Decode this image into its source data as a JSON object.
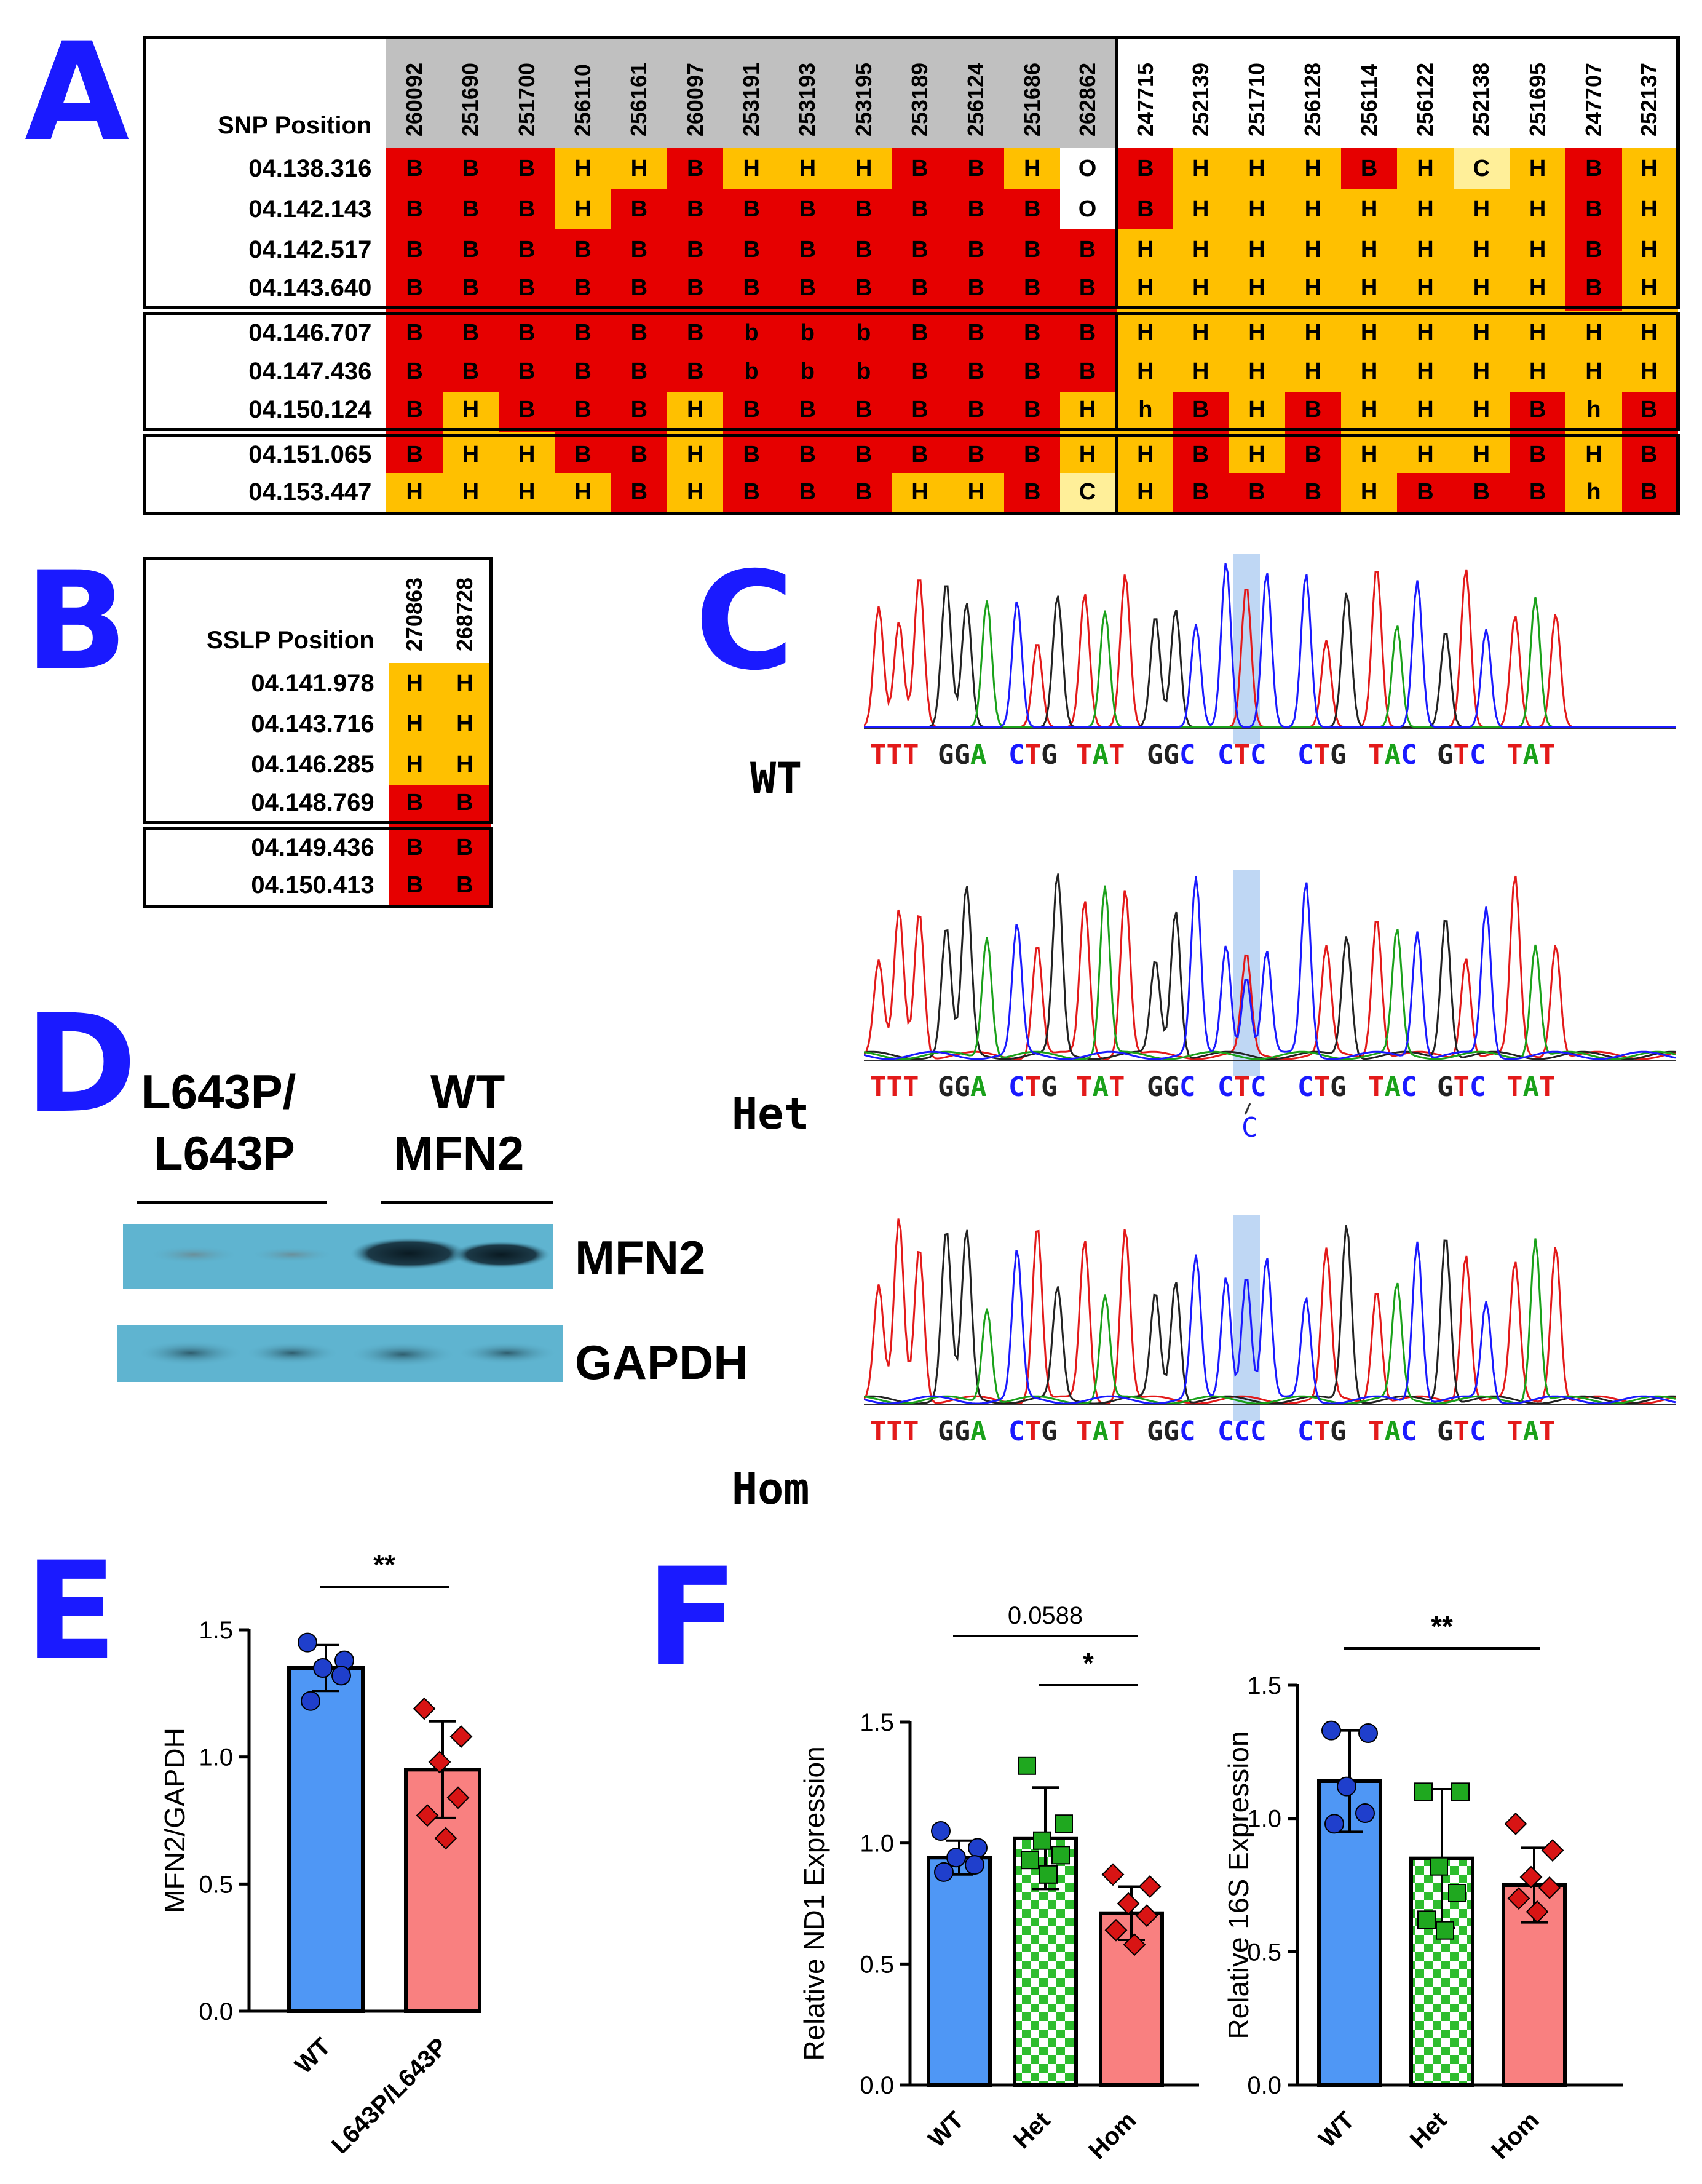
{
  "panels": {
    "A": "A",
    "B": "B",
    "C": "C",
    "D": "D",
    "E": "E",
    "F": "F"
  },
  "snp_table": {
    "corner_label": "SNP Position",
    "grey_columns": [
      "260092",
      "251690",
      "251700",
      "256110",
      "256161",
      "260097",
      "253191",
      "253193",
      "253195",
      "253189",
      "256124",
      "251686",
      "262862"
    ],
    "white_columns": [
      "247715",
      "252139",
      "251710",
      "256128",
      "256114",
      "256122",
      "252138",
      "251695",
      "247707",
      "252137"
    ],
    "rows": [
      {
        "pos": "04.138.316",
        "vals": [
          "B",
          "B",
          "B",
          "H",
          "H",
          "B",
          "H",
          "H",
          "H",
          "B",
          "B",
          "H",
          "O",
          "B",
          "H",
          "H",
          "H",
          "B",
          "H",
          "C",
          "H",
          "B",
          "H"
        ]
      },
      {
        "pos": "04.142.143",
        "vals": [
          "B",
          "B",
          "B",
          "H",
          "B",
          "B",
          "B",
          "B",
          "B",
          "B",
          "B",
          "B",
          "O",
          "B",
          "H",
          "H",
          "H",
          "H",
          "H",
          "H",
          "H",
          "B",
          "H"
        ]
      },
      {
        "pos": "04.142.517",
        "vals": [
          "B",
          "B",
          "B",
          "B",
          "B",
          "B",
          "B",
          "B",
          "B",
          "B",
          "B",
          "B",
          "B",
          "H",
          "H",
          "H",
          "H",
          "H",
          "H",
          "H",
          "H",
          "B",
          "H"
        ]
      },
      {
        "pos": "04.143.640",
        "vals": [
          "B",
          "B",
          "B",
          "B",
          "B",
          "B",
          "B",
          "B",
          "B",
          "B",
          "B",
          "B",
          "B",
          "H",
          "H",
          "H",
          "H",
          "H",
          "H",
          "H",
          "H",
          "B",
          "H"
        ]
      },
      {
        "pos": "04.146.707",
        "sep": true,
        "vals": [
          "B",
          "B",
          "B",
          "B",
          "B",
          "B",
          "b",
          "b",
          "b",
          "B",
          "B",
          "B",
          "B",
          "H",
          "H",
          "H",
          "H",
          "H",
          "H",
          "H",
          "H",
          "H",
          "H"
        ]
      },
      {
        "pos": "04.147.436",
        "vals": [
          "B",
          "B",
          "B",
          "B",
          "B",
          "B",
          "b",
          "b",
          "b",
          "B",
          "B",
          "B",
          "B",
          "H",
          "H",
          "H",
          "H",
          "H",
          "H",
          "H",
          "H",
          "H",
          "H"
        ]
      },
      {
        "pos": "04.150.124",
        "vals": [
          "B",
          "H",
          "B",
          "B",
          "B",
          "H",
          "B",
          "B",
          "B",
          "B",
          "B",
          "B",
          "H",
          "h",
          "B",
          "H",
          "B",
          "H",
          "H",
          "H",
          "B",
          "h",
          "B"
        ]
      },
      {
        "pos": "04.151.065",
        "sep": true,
        "vals": [
          "B",
          "H",
          "H",
          "B",
          "B",
          "H",
          "B",
          "B",
          "B",
          "B",
          "B",
          "B",
          "H",
          "H",
          "B",
          "H",
          "B",
          "H",
          "H",
          "H",
          "B",
          "H",
          "B"
        ]
      },
      {
        "pos": "04.153.447",
        "vals": [
          "H",
          "H",
          "H",
          "H",
          "B",
          "H",
          "B",
          "B",
          "B",
          "H",
          "H",
          "B",
          "C",
          "H",
          "B",
          "B",
          "B",
          "H",
          "B",
          "B",
          "B",
          "h",
          "B"
        ]
      }
    ]
  },
  "sslp_table": {
    "corner_label": "SSLP Position",
    "columns": [
      "270863",
      "268728"
    ],
    "rows": [
      {
        "pos": "04.141.978",
        "vals": [
          "H",
          "H"
        ]
      },
      {
        "pos": "04.143.716",
        "vals": [
          "H",
          "H"
        ]
      },
      {
        "pos": "04.146.285",
        "vals": [
          "H",
          "H"
        ]
      },
      {
        "pos": "04.148.769",
        "vals": [
          "B",
          "B"
        ]
      },
      {
        "pos": "04.149.436",
        "sep": true,
        "vals": [
          "B",
          "B"
        ]
      },
      {
        "pos": "04.150.413",
        "vals": [
          "B",
          "B"
        ]
      }
    ]
  },
  "chromatograms": {
    "labels": [
      "WT",
      "Het",
      "Hom"
    ],
    "codons_wt": [
      "TTT",
      "GGA",
      "CTG",
      "TAT",
      "GGC",
      "CTC",
      "CTG",
      "TAC",
      "GTC",
      "TAT"
    ],
    "codons_het": [
      "TTT",
      "GGA",
      "CTG",
      "TAT",
      "GGC",
      "CTC",
      "CTG",
      "TAC",
      "GTC",
      "TAT"
    ],
    "het_extra": "C",
    "codons_hom": [
      "TTT",
      "GGA",
      "CTG",
      "TAT",
      "GGC",
      "CCC",
      "CTG",
      "TAC",
      "GTC",
      "TAT"
    ],
    "base_colors": {
      "T": "#e31a1a",
      "G": "#222222",
      "A": "#1aa11a",
      "C": "#1a1aff"
    }
  },
  "western": {
    "group1": "L643P/\nL643P",
    "group1_line1": "L643P/",
    "group1_line2": "L643P",
    "group2_line1": "WT",
    "group2_line2": "MFN2",
    "band1": "MFN2",
    "band2": "GAPDH"
  },
  "chart_data": [
    {
      "type": "bar",
      "panel": "E",
      "categories": [
        "WT",
        "L643P/L643P"
      ],
      "values": [
        1.35,
        0.95
      ],
      "errors": [
        0.09,
        0.19
      ],
      "points": [
        [
          1.45,
          1.38,
          1.35,
          1.32,
          1.22
        ],
        [
          1.19,
          1.08,
          0.98,
          0.84,
          0.77,
          0.68
        ]
      ],
      "ylabel": "MFN2/GAPDH",
      "ylim": [
        0,
        1.5
      ],
      "yticks": [
        "0.0",
        "0.5",
        "1.0",
        "1.5"
      ],
      "significance": [
        {
          "from": 0,
          "to": 1,
          "label": "**"
        }
      ],
      "colors": [
        "#4f97f5",
        "#f98080"
      ]
    },
    {
      "type": "bar",
      "panel": "F-left",
      "categories": [
        "WT",
        "Het",
        "Hom"
      ],
      "values": [
        0.94,
        1.02,
        0.71
      ],
      "errors": [
        0.07,
        0.21,
        0.11
      ],
      "points": [
        [
          1.05,
          0.98,
          0.94,
          0.91,
          0.88
        ],
        [
          1.32,
          1.08,
          1.01,
          0.95,
          0.93,
          0.87
        ],
        [
          0.87,
          0.82,
          0.75,
          0.7,
          0.64,
          0.58
        ]
      ],
      "ylabel": "Relative ND1 Expression",
      "ylim": [
        0,
        1.5
      ],
      "yticks": [
        "0.0",
        "0.5",
        "1.0",
        "1.5"
      ],
      "significance": [
        {
          "from": 0,
          "to": 2,
          "label": "0.0588"
        },
        {
          "from": 1,
          "to": 2,
          "label": "*"
        }
      ],
      "colors": [
        "#4f97f5",
        "#2ebd2e",
        "#f98080"
      ]
    },
    {
      "type": "bar",
      "panel": "F-right",
      "categories": [
        "WT",
        "Het",
        "Hom"
      ],
      "values": [
        1.14,
        0.85,
        0.75
      ],
      "errors": [
        0.19,
        0.26,
        0.14
      ],
      "points": [
        [
          1.33,
          1.32,
          1.12,
          1.02,
          0.98
        ],
        [
          1.1,
          1.1,
          0.82,
          0.72,
          0.62,
          0.58
        ],
        [
          0.98,
          0.88,
          0.78,
          0.74,
          0.7,
          0.65
        ]
      ],
      "ylabel": "Relative 16S Expression",
      "ylim": [
        0,
        1.5
      ],
      "yticks": [
        "0.0",
        "0.5",
        "1.0",
        "1.5"
      ],
      "significance": [
        {
          "from": 0,
          "to": 2,
          "label": "**"
        }
      ],
      "colors": [
        "#4f97f5",
        "#2ebd2e",
        "#f98080"
      ]
    }
  ]
}
